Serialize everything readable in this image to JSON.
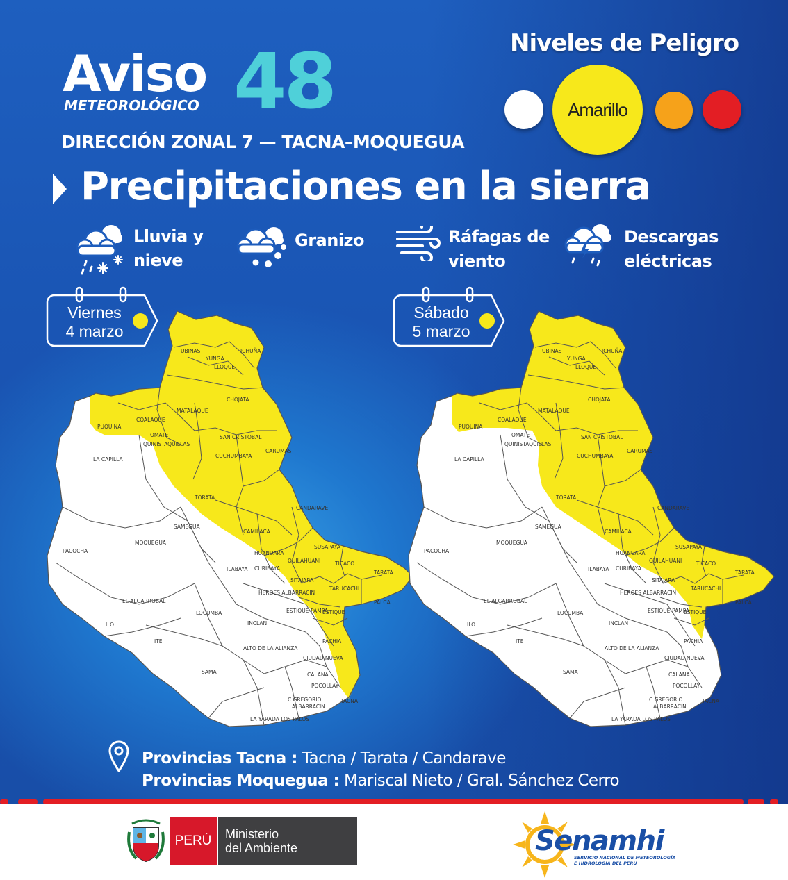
{
  "header": {
    "aviso": "Aviso",
    "meteorologico": "METEOROLÓGICO",
    "numero": "48",
    "zona": "DIRECCIÓN ZONAL 7 — TACNA–MOQUEGUA"
  },
  "niveles": {
    "title": "Niveles de Peligro",
    "active_label": "Amarillo",
    "colors": [
      "#ffffff",
      "#f7e81b",
      "#f6a21a",
      "#e31e24"
    ]
  },
  "headline": "Precipitaciones en la sierra",
  "hazards": [
    {
      "icon": "rain-snow-icon",
      "line1": "Lluvia y",
      "line2": "nieve"
    },
    {
      "icon": "hail-icon",
      "line1": "Granizo",
      "line2": ""
    },
    {
      "icon": "wind-icon",
      "line1": "Ráfagas de",
      "line2": "viento"
    },
    {
      "icon": "thunderstorm-icon",
      "line1": "Descargas",
      "line2": "eléctricas"
    }
  ],
  "days": [
    {
      "day": "Viernes",
      "date": "4 marzo",
      "level_color": "#f7e81b"
    },
    {
      "day": "Sábado",
      "date": "5 marzo",
      "level_color": "#f7e81b"
    }
  ],
  "districts": [
    "UBINAS",
    "ICHUÑA",
    "YUNGA",
    "LLOQUE",
    "CHOJATA",
    "MATALAQUE",
    "COALAQUE",
    "PUQUINA",
    "OMATE",
    "QUINISTAQUILLAS",
    "SAN CRISTOBAL",
    "CARUMAS",
    "CUCHUMBAYA",
    "LA CAPILLA",
    "TORATA",
    "SAMEGUA",
    "CANDARAVE",
    "MOQUEGUA",
    "CAMILACA",
    "SUSAPAYA",
    "HUANUARA",
    "QUILAHUANI",
    "TICACO",
    "PACOCHA",
    "ILABAYA",
    "CURIBAYA",
    "SITAJARA",
    "TARATA",
    "TARUCACHI",
    "HEROES ALBARRACIN",
    "PALCA",
    "EL ALGARROBAL",
    "LOCUMBA",
    "ESTIQUE-PAMPA",
    "ESTIQUE",
    "ILO",
    "INCLAN",
    "ITE",
    "PACHIA",
    "ALTO DE LA ALIANZA",
    "CIUDAD NUEVA",
    "SAMA",
    "CALANA",
    "POCOLLAY",
    "C.GREGORIO",
    "ALBARRACIN",
    "TACNA",
    "LA YARADA LOS PALOS"
  ],
  "provincias": {
    "tacna_label": "Provincias Tacna :",
    "tacna_list": " Tacna / Tarata / Candarave",
    "moquegua_label": "Provincias Moquegua :",
    "moquegua_list": "  Mariscal Nieto / Gral. Sánchez Cerro"
  },
  "footer": {
    "peru": "PERÚ",
    "ministerio_1": "Ministerio",
    "ministerio_2": "del Ambiente",
    "senamhi": "Senamhi",
    "senamhi_sub_1": "SERVICIO NACIONAL DE METEOROLOGÍA",
    "senamhi_sub_2": "E HIDROLOGÍA DEL PERÚ"
  }
}
